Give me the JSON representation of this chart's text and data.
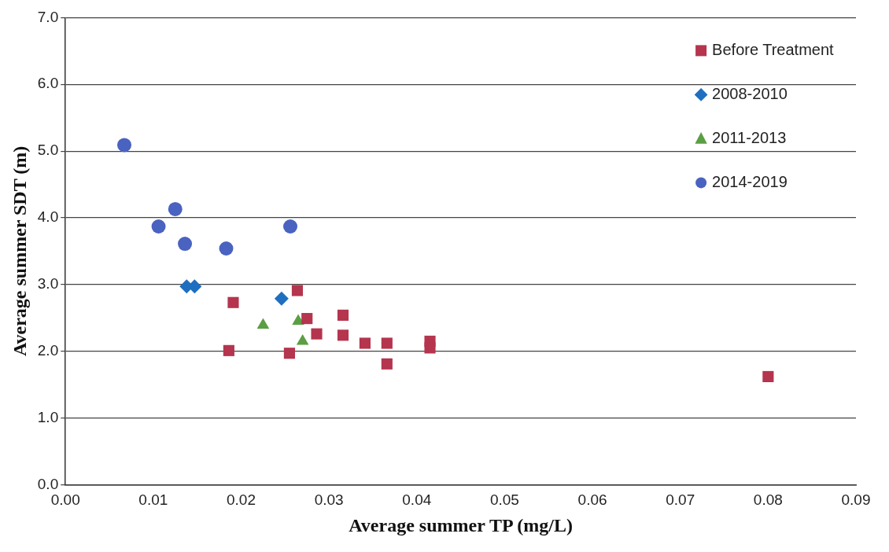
{
  "chart_data": {
    "type": "scatter",
    "xlabel": "Average summer TP (mg/L)",
    "ylabel": "Average summer SDT (m)",
    "xlim": [
      0,
      0.09
    ],
    "xticks": [
      {
        "value": 0,
        "label": "0.00"
      },
      0.01,
      0.02,
      0.03,
      0.04,
      0.05,
      0.06,
      0.07,
      0.08,
      0.09
    ],
    "ylim": [
      0,
      7
    ],
    "yticks": [
      {
        "value": 0,
        "label": "0.0"
      },
      {
        "value": 1,
        "label": "1.0"
      },
      {
        "value": 2,
        "label": "2.0"
      },
      {
        "value": 3,
        "label": "3.0"
      },
      {
        "value": 4,
        "label": "4.0"
      },
      {
        "value": 5,
        "label": "5.0"
      },
      {
        "value": 6,
        "label": "6.0"
      },
      {
        "value": 7,
        "label": "7.0"
      }
    ],
    "grid": "y",
    "legend": "top right",
    "series": [
      {
        "name": "Before Treatment",
        "color": "#b5344e",
        "marker": "square",
        "x": [
          0.0191,
          0.0186,
          0.0255,
          0.0264,
          0.0275,
          0.0286,
          0.0316,
          0.0316,
          0.0341,
          0.0366,
          0.0366,
          0.0415,
          0.0415,
          0.08
        ],
        "values": [
          2.73,
          2.01,
          1.97,
          2.91,
          2.49,
          2.26,
          2.54,
          2.24,
          2.12,
          2.12,
          1.81,
          2.15,
          2.05,
          1.62
        ]
      },
      {
        "name": "2008-2010",
        "color": "#1f6fc0",
        "marker": "diamond",
        "x": [
          0.0138,
          0.0147,
          0.0246
        ],
        "values": [
          2.97,
          2.97,
          2.79
        ]
      },
      {
        "name": "2011-2013",
        "color": "#5b9e44",
        "marker": "triangle",
        "x": [
          0.0225,
          0.0265,
          0.027
        ],
        "values": [
          2.39,
          2.45,
          2.15
        ]
      },
      {
        "name": "2014-2019",
        "color": "#4a62c0",
        "marker": "circle",
        "x": [
          0.0067,
          0.0106,
          0.0125,
          0.0136,
          0.0183,
          0.0256
        ],
        "values": [
          5.09,
          3.87,
          4.13,
          3.61,
          3.54,
          3.87
        ]
      }
    ]
  }
}
